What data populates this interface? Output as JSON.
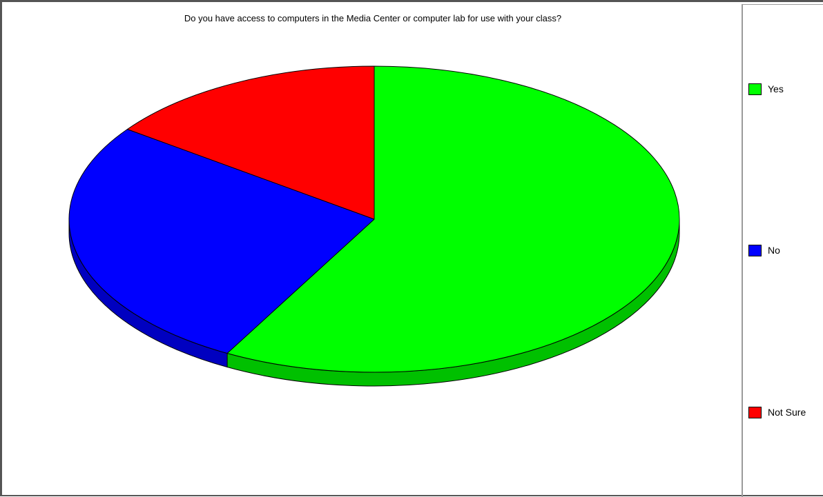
{
  "chart_data": {
    "type": "pie",
    "title": "Do you have access to computers in the Media Center or computer lab for use with your class?",
    "categories": [
      "Yes",
      "No",
      "Not Sure"
    ],
    "values": [
      58,
      27,
      15
    ],
    "colors": [
      "#00ff00",
      "#0000ff",
      "#ff0000"
    ],
    "side_colors": [
      "#00c000",
      "#0000c0",
      "#c00000"
    ],
    "legend": [
      {
        "label": "Yes",
        "color": "#00ff00"
      },
      {
        "label": "No",
        "color": "#0000ff"
      },
      {
        "label": "Not Sure",
        "color": "#ff0000"
      }
    ],
    "legend_position": "right",
    "style": "3d"
  }
}
